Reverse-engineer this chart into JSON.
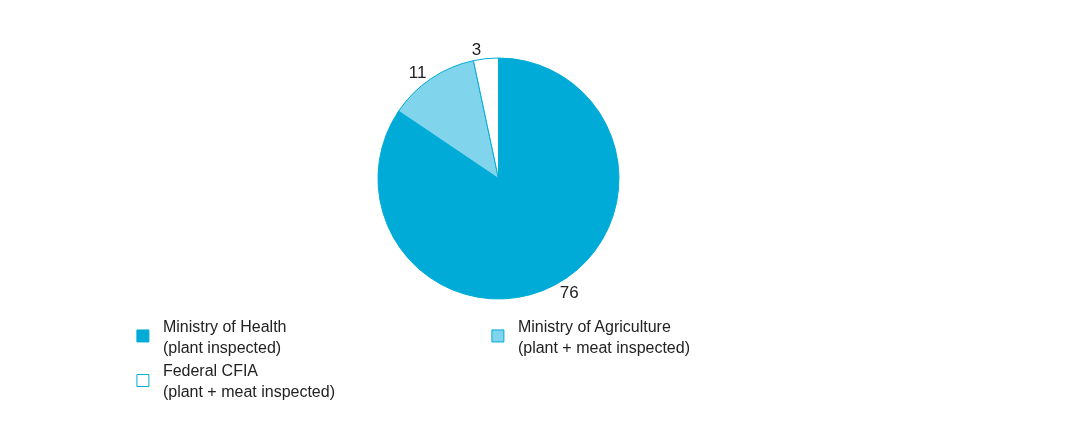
{
  "chart_data": {
    "type": "pie",
    "categories": [
      "Ministry of Health\n(plant inspected)",
      "Ministry of Agriculture\n(plant + meat inspected)",
      "Federal CFIA\n(plant + meat inspected)"
    ],
    "values": [
      76,
      11,
      3
    ],
    "colors": [
      "#00acd7",
      "#80d5ec",
      "#ffffff"
    ],
    "data_labels": true,
    "legend": "bottom"
  }
}
